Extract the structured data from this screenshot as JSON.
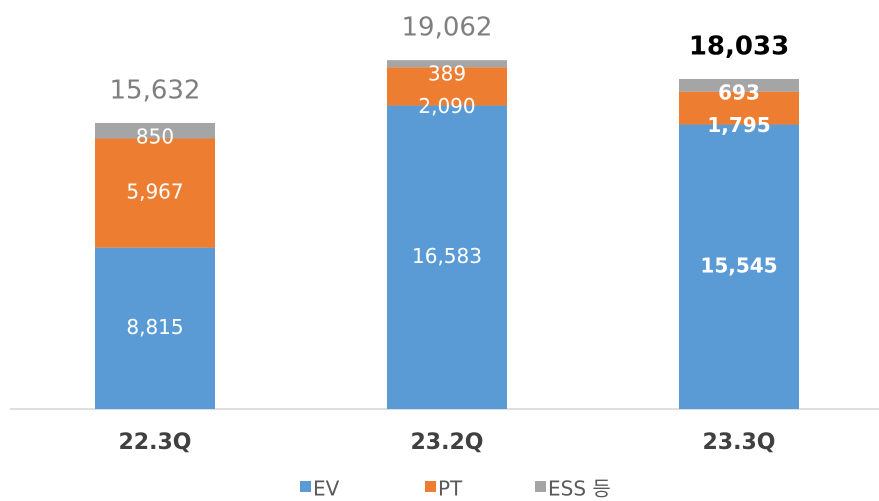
{
  "chart_data": {
    "type": "stacked_bar",
    "categories": [
      "22.3Q",
      "23.2Q",
      "23.3Q"
    ],
    "series": [
      {
        "name": "EV",
        "color": "#5b9bd5",
        "values": [
          8815,
          16583,
          15545
        ],
        "value_labels": [
          "8,815",
          "16,583",
          "15,545"
        ]
      },
      {
        "name": "PT",
        "color": "#ed7d31",
        "values": [
          5967,
          2090,
          1795
        ],
        "value_labels": [
          "5,967",
          "2,090",
          "1,795"
        ]
      },
      {
        "name": "ESS 등",
        "color": "#a5a5a5",
        "values": [
          850,
          389,
          693
        ],
        "value_labels": [
          "850",
          "389",
          "693"
        ]
      }
    ],
    "totals": [
      15632,
      19062,
      18033
    ],
    "total_labels": [
      "15,632",
      "19,062",
      "18,033"
    ],
    "ylim": [
      0,
      22350
    ],
    "legend": "bottom"
  }
}
